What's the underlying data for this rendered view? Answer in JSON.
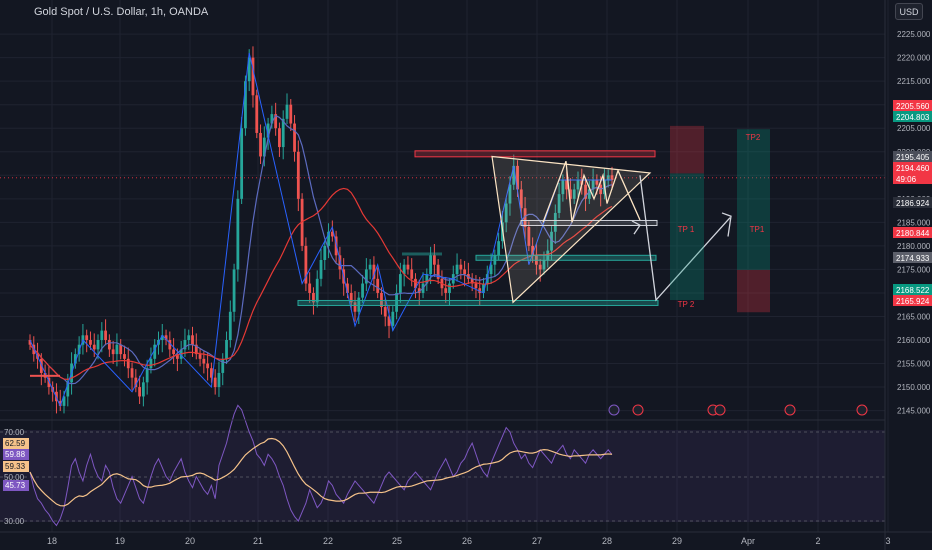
{
  "header": {
    "title": "Gold Spot / U.S. Dollar, 1h, OANDA",
    "currency_button": "USD"
  },
  "colors": {
    "bg": "#131722",
    "up": "#26a69a",
    "down": "#ef5350",
    "rsi": "#7e57c2",
    "rsi_ma": "#f5c28a",
    "zigzag": "#2962ff",
    "ma_red": "#e53935",
    "annot": "#fce4c4",
    "grid": "#1f2330"
  },
  "price_axis": {
    "ticks": [
      "2225.000",
      "2220.000",
      "2215.000",
      "2210.000",
      "2205.000",
      "2200.000",
      "2195.000",
      "2190.000",
      "2185.000",
      "2180.000",
      "2175.000",
      "2170.000",
      "2165.000",
      "2160.000",
      "2155.000",
      "2150.000",
      "2145.000"
    ]
  },
  "price_labels": [
    {
      "text": "2205.560",
      "color": "#f23645"
    },
    {
      "text": "2204.803",
      "color": "#089981"
    },
    {
      "text": "2195.405",
      "color": "#4a4e5a"
    },
    {
      "text": "2194.460",
      "color": "#f23645"
    },
    {
      "text": "49:06",
      "color": "#f23645"
    },
    {
      "text": "2186.924",
      "color": "#2a2e39"
    },
    {
      "text": "2180.844",
      "color": "#f23645"
    },
    {
      "text": "2174.933",
      "color": "#5d606b"
    },
    {
      "text": "2168.522",
      "color": "#089981"
    },
    {
      "text": "2165.924",
      "color": "#f23645"
    }
  ],
  "rsi_axis": {
    "ticks": [
      "70.00",
      "50.00",
      "30.00"
    ],
    "labels": [
      {
        "text": "62.59",
        "color": "#f5c28a",
        "fg": "#131722"
      },
      {
        "text": "59.88",
        "color": "#7e57c2",
        "fg": "#ffffff"
      },
      {
        "text": "59.33",
        "color": "#f5c28a",
        "fg": "#131722"
      },
      {
        "text": "45.73",
        "color": "#7e57c2",
        "fg": "#ffffff"
      }
    ]
  },
  "time_axis": {
    "ticks": [
      "18",
      "19",
      "20",
      "21",
      "22",
      "25",
      "26",
      "27",
      "28",
      "29",
      "Apr",
      "2",
      "3"
    ]
  },
  "annotations": {
    "tp1_left": "TP 1",
    "tp2_left": "TP 2",
    "tp1_right": "TP1",
    "tp2_right": "TP2"
  },
  "chart_data": {
    "type": "candlestick",
    "title": "Gold Spot / U.S. Dollar, 1h, OANDA",
    "y_range": [
      2143,
      2228
    ],
    "rsi_range": [
      25,
      75
    ],
    "closes": [
      2159,
      2157,
      2156,
      2153,
      2152,
      2150,
      2149,
      2147,
      2146,
      2148,
      2151,
      2155,
      2157,
      2159,
      2161,
      2160,
      2159,
      2158,
      2160,
      2162,
      2160,
      2158,
      2157,
      2159,
      2157,
      2156,
      2154,
      2152,
      2150,
      2148,
      2151,
      2154,
      2156,
      2159,
      2160,
      2161,
      2160,
      2158,
      2157,
      2156,
      2158,
      2160,
      2161,
      2159,
      2157,
      2156,
      2155,
      2154,
      2152,
      2150,
      2153,
      2156,
      2160,
      2166,
      2175,
      2190,
      2205,
      2215,
      2220,
      2212,
      2204,
      2199,
      2203,
      2206,
      2208,
      2205,
      2201,
      2207,
      2210,
      2206,
      2200,
      2190,
      2180,
      2172,
      2170,
      2168,
      2173,
      2177,
      2180,
      2183,
      2182,
      2178,
      2175,
      2172,
      2170,
      2168,
      2166,
      2169,
      2172,
      2175,
      2176,
      2173,
      2170,
      2167,
      2165,
      2163,
      2166,
      2170,
      2174,
      2176,
      2175,
      2173,
      2171,
      2170,
      2172,
      2174,
      2178,
      2176,
      2173,
      2171,
      2170,
      2172,
      2174,
      2176,
      2175,
      2174,
      2173,
      2172,
      2171,
      2170,
      2172,
      2174,
      2176,
      2178,
      2181,
      2185,
      2189,
      2193,
      2197,
      2192,
      2188,
      2184,
      2180,
      2178,
      2176,
      2175,
      2177,
      2179,
      2183,
      2187,
      2191,
      2194,
      2192,
      2190,
      2192,
      2194,
      2193,
      2190,
      2192,
      2194,
      2193,
      2191,
      2194,
      2195,
      2194
    ],
    "rsi": [
      52,
      45,
      40,
      38,
      35,
      33,
      30,
      28,
      31,
      36,
      45,
      55,
      58,
      52,
      48,
      55,
      60,
      54,
      50,
      48,
      55,
      52,
      45,
      40,
      38,
      42,
      46,
      50,
      45,
      40,
      38,
      44,
      50,
      55,
      58,
      54,
      50,
      48,
      52,
      55,
      58,
      52,
      48,
      45,
      50,
      47,
      44,
      42,
      46,
      40,
      55,
      60,
      65,
      72,
      78,
      82,
      80,
      75,
      70,
      66,
      60,
      58,
      55,
      60,
      58,
      55,
      50,
      46,
      40,
      35,
      32,
      30,
      34,
      38,
      44,
      40,
      36,
      38,
      42,
      48,
      46,
      42,
      40,
      38,
      42,
      45,
      48,
      46,
      44,
      42,
      40,
      38,
      42,
      46,
      50,
      52,
      50,
      48,
      46,
      44,
      48,
      50,
      52,
      50,
      48,
      46,
      44,
      48,
      52,
      55,
      58,
      54,
      50,
      52,
      56,
      58,
      62,
      65,
      60,
      55,
      52,
      50,
      56,
      60,
      64,
      68,
      72,
      70,
      65,
      62,
      58,
      60,
      56,
      54,
      58,
      62,
      60,
      58,
      56,
      60,
      62,
      64,
      60,
      58,
      62,
      60,
      58,
      56,
      60,
      62,
      60,
      58,
      60,
      62,
      59.88
    ],
    "zigzag": [
      [
        0,
        2160
      ],
      [
        8,
        2146
      ],
      [
        14,
        2160
      ],
      [
        27,
        2149
      ],
      [
        35,
        2161
      ],
      [
        48,
        2150
      ],
      [
        58,
        2221
      ],
      [
        72,
        2172
      ],
      [
        80,
        2184
      ],
      [
        86,
        2163
      ],
      [
        92,
        2176
      ],
      [
        96,
        2162
      ],
      [
        104,
        2174
      ],
      [
        112,
        2173
      ],
      [
        120,
        2170
      ],
      [
        128,
        2197
      ],
      [
        132,
        2176
      ],
      [
        140,
        2194
      ],
      [
        154,
        2194
      ]
    ],
    "levels": [
      2199.4,
      2184.2,
      2177.0,
      2167.5
    ],
    "tp_targets": [
      "TP 1",
      "TP 2",
      "TP1",
      "TP2"
    ],
    "time_ticks": [
      "18",
      "19",
      "20",
      "21",
      "22",
      "25",
      "26",
      "27",
      "28",
      "29",
      "Apr",
      "2",
      "3"
    ]
  }
}
